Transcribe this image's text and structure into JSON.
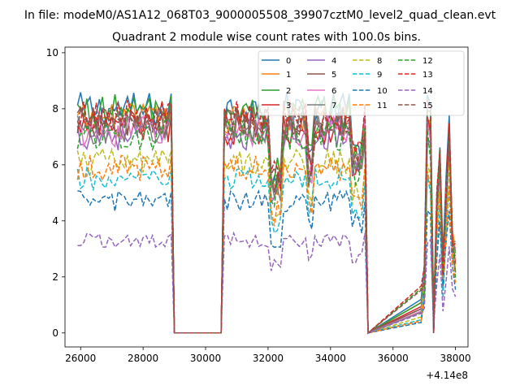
{
  "figure": {
    "suptitle": "In file: modeM0/AS1A12_068T03_9000005508_39907cztM0_level2_quad_clean.evt",
    "offset_label": "+4.14e8"
  },
  "chart_data": {
    "type": "line",
    "title": "Quadrant 2 module wise count rates with 100.0s bins.",
    "xlabel": "",
    "ylabel": "",
    "xlim": [
      25500,
      38400
    ],
    "ylim": [
      -0.5,
      10.2
    ],
    "xticks": [
      26000,
      28000,
      30000,
      32000,
      34000,
      36000,
      38000
    ],
    "yticks": [
      0,
      2,
      4,
      6,
      8,
      10
    ],
    "grid": false,
    "legend": "top-right",
    "x": [
      25900,
      26000,
      26100,
      26200,
      26300,
      26400,
      26500,
      26600,
      26700,
      26800,
      26900,
      27000,
      27100,
      27200,
      27300,
      27400,
      27500,
      27600,
      27700,
      27800,
      27900,
      28000,
      28100,
      28200,
      28300,
      28400,
      28500,
      28600,
      28700,
      28800,
      28900,
      29000,
      30500,
      30600,
      30700,
      30800,
      30900,
      31000,
      31100,
      31200,
      31300,
      31400,
      31500,
      31600,
      31700,
      31800,
      31900,
      32000,
      32100,
      32200,
      32300,
      32400,
      32500,
      32600,
      32700,
      32800,
      32900,
      33000,
      33100,
      33200,
      33300,
      33400,
      33500,
      33600,
      33700,
      33800,
      33900,
      34000,
      34100,
      34200,
      34300,
      34400,
      34500,
      34600,
      34700,
      34800,
      34900,
      35000,
      35100,
      35200,
      36900,
      37000,
      37100,
      37200,
      37300,
      37400,
      37500,
      37600,
      37700,
      37800,
      37900,
      38000
    ],
    "series": [
      {
        "name": "0",
        "color": "#1f77b4",
        "dash": "solid",
        "level": 7.97
      },
      {
        "name": "1",
        "color": "#ff7f0e",
        "dash": "solid",
        "level": 7.58
      },
      {
        "name": "2",
        "color": "#2ca02c",
        "dash": "solid",
        "level": 7.9
      },
      {
        "name": "3",
        "color": "#d62728",
        "dash": "solid",
        "level": 7.3
      },
      {
        "name": "4",
        "color": "#9467bd",
        "dash": "solid",
        "level": 7.08
      },
      {
        "name": "5",
        "color": "#8c564b",
        "dash": "solid",
        "level": 7.48
      },
      {
        "name": "6",
        "color": "#e377c2",
        "dash": "solid",
        "level": 7.22
      },
      {
        "name": "7",
        "color": "#7f7f7f",
        "dash": "solid",
        "level": 7.3
      },
      {
        "name": "8",
        "color": "#bcbd22",
        "dash": "dashed",
        "level": 6.1
      },
      {
        "name": "9",
        "color": "#17becf",
        "dash": "dashed",
        "level": 5.45
      },
      {
        "name": "10",
        "color": "#1f77b4",
        "dash": "dashed",
        "level": 4.7
      },
      {
        "name": "11",
        "color": "#ff7f0e",
        "dash": "dashed",
        "level": 5.9
      },
      {
        "name": "12",
        "color": "#2ca02c",
        "dash": "dashed",
        "level": 7.05
      },
      {
        "name": "13",
        "color": "#d62728",
        "dash": "dashed",
        "level": 7.7
      },
      {
        "name": "14",
        "color": "#9467bd",
        "dash": "dashed",
        "level": 3.3
      },
      {
        "name": "15",
        "color": "#8c564b",
        "dash": "dashed",
        "level": 7.5
      }
    ]
  }
}
